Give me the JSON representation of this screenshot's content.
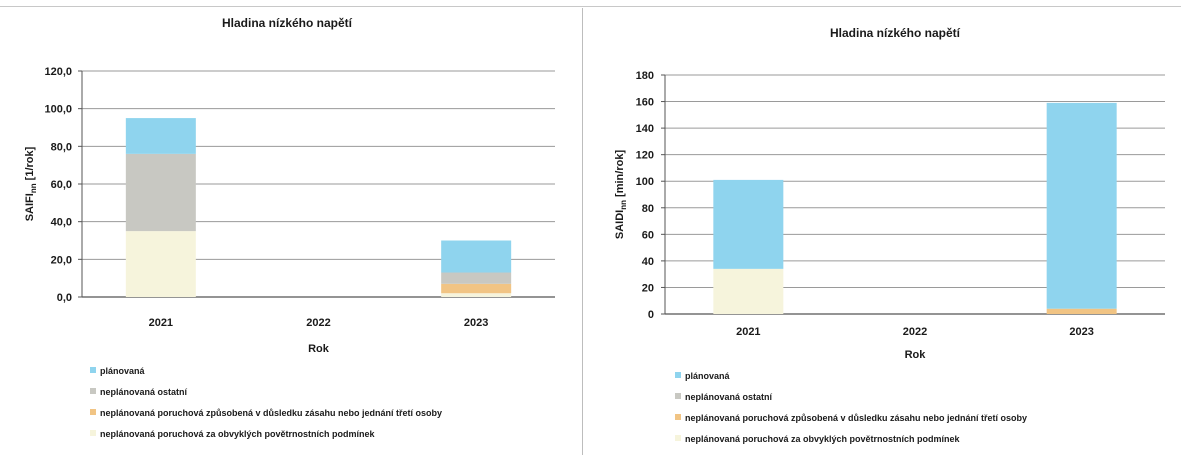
{
  "colors": {
    "planovana": "#8fd4ee",
    "neplanovana_ostatni": "#c8c8c2",
    "neplanovana_treti_osoba": "#f1c484",
    "neplanovana_povetrnostni": "#f6f4dc",
    "gridline": "#9a9a9a",
    "axis": "#555555"
  },
  "chart_data": [
    {
      "type": "bar",
      "stacked": true,
      "title": "Hladina nízkého napětí",
      "xlabel": "Rok",
      "ylabel": "SAIFI_nn [1/rok]",
      "ylabel_main": "SAIFI",
      "ylabel_sub": "nn",
      "ylabel_unit": " [1/rok]",
      "categories": [
        "2021",
        "2022",
        "2023"
      ],
      "ylim": [
        0,
        120
      ],
      "yticks": [
        0,
        20,
        40,
        60,
        80,
        100,
        120
      ],
      "ytick_labels": [
        "0,0",
        "20,0",
        "40,0",
        "60,0",
        "80,0",
        "100,0",
        "120,0"
      ],
      "grid": true,
      "legend_position": "bottom",
      "series": [
        {
          "name": "neplánovaná poruchová za obvyklých povětrnostních podmínek",
          "color_key": "neplanovana_povetrnostni",
          "values": [
            35,
            0,
            2
          ]
        },
        {
          "name": "neplánovaná poruchová způsobená v důsledku zásahu nebo jednání třetí osoby",
          "color_key": "neplanovana_treti_osoba",
          "values": [
            0,
            0,
            5
          ]
        },
        {
          "name": "neplánovaná ostatní",
          "color_key": "neplanovana_ostatni",
          "values": [
            41,
            0,
            6
          ]
        },
        {
          "name": "plánovaná",
          "color_key": "planovana",
          "values": [
            19,
            0,
            17
          ]
        }
      ],
      "legend_order": [
        3,
        2,
        1,
        0
      ]
    },
    {
      "type": "bar",
      "stacked": true,
      "title": "Hladina nízkého napětí",
      "xlabel": "Rok",
      "ylabel": "SAIDI_nn [min/rok]",
      "ylabel_main": "SAIDI",
      "ylabel_sub": "nn",
      "ylabel_unit": " [min/rok]",
      "categories": [
        "2021",
        "2022",
        "2023"
      ],
      "ylim": [
        0,
        180
      ],
      "yticks": [
        0,
        20,
        40,
        60,
        80,
        100,
        120,
        140,
        160,
        180
      ],
      "ytick_labels": [
        "0",
        "20",
        "40",
        "60",
        "80",
        "100",
        "120",
        "140",
        "160",
        "180"
      ],
      "grid": true,
      "legend_position": "bottom",
      "series": [
        {
          "name": "neplánovaná poruchová za obvyklých povětrnostních podmínek",
          "color_key": "neplanovana_povetrnostni",
          "values": [
            34,
            0,
            0
          ]
        },
        {
          "name": "neplánovaná poruchová způsobená v důsledku zásahu nebo jednání třetí osoby",
          "color_key": "neplanovana_treti_osoba",
          "values": [
            0,
            0,
            4
          ]
        },
        {
          "name": "neplánovaná ostatní",
          "color_key": "neplanovana_ostatni",
          "values": [
            0,
            0,
            0
          ]
        },
        {
          "name": "plánovaná",
          "color_key": "planovana",
          "values": [
            67,
            0,
            155
          ]
        }
      ],
      "legend_order": [
        3,
        2,
        1,
        0
      ]
    }
  ]
}
